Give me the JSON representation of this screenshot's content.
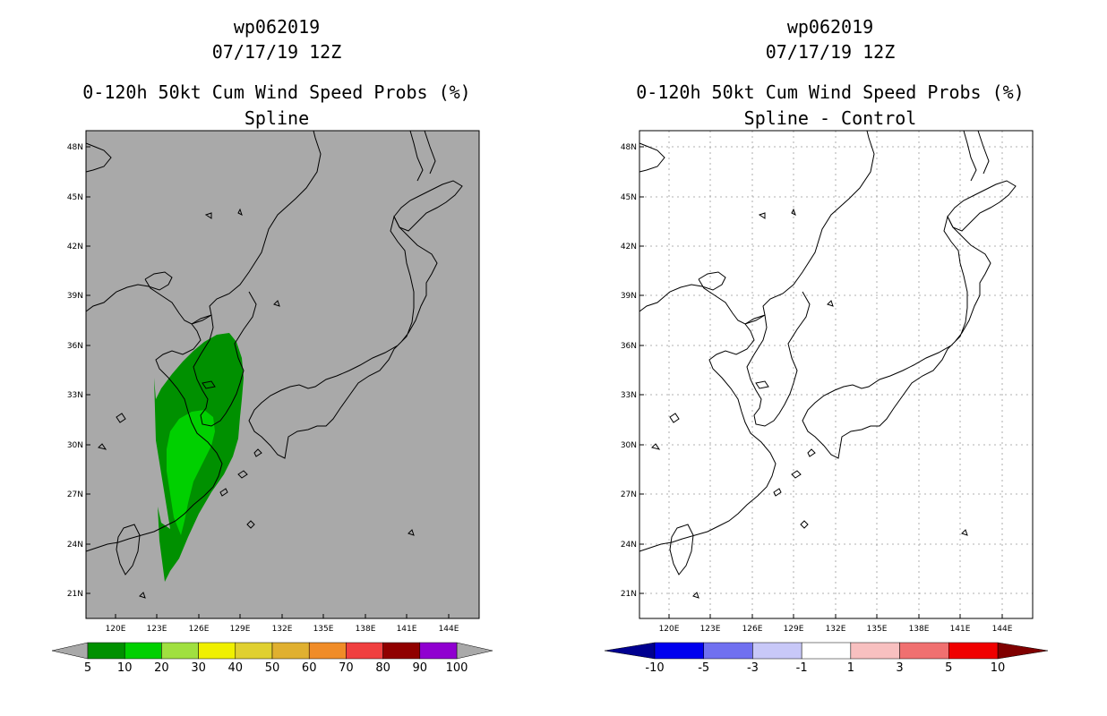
{
  "panels": [
    {
      "storm_id": "wp062019",
      "datetime": "07/17/19 12Z",
      "product": "0-120h 50kt Cum Wind Speed Probs (%)",
      "subtitle": "Spline",
      "map_background": "#a9a9a9",
      "gridlines": false
    },
    {
      "storm_id": "wp062019",
      "datetime": "07/17/19 12Z",
      "product": "0-120h 50kt Cum Wind Speed Probs (%)",
      "subtitle": "Spline - Control",
      "map_background": "#ffffff",
      "gridlines": true
    }
  ],
  "axes": {
    "lat_labels": [
      "48N",
      "45N",
      "42N",
      "39N",
      "36N",
      "33N",
      "30N",
      "27N",
      "24N",
      "21N"
    ],
    "lon_labels": [
      "120E",
      "123E",
      "126E",
      "129E",
      "132E",
      "135E",
      "138E",
      "141E",
      "144E"
    ]
  },
  "colorbars": [
    {
      "labels": [
        "5",
        "10",
        "20",
        "30",
        "40",
        "50",
        "60",
        "70",
        "80",
        "90",
        "100"
      ],
      "colors": [
        "#009000",
        "#00d000",
        "#a0e040",
        "#f0f000",
        "#e0d030",
        "#e0b030",
        "#f08c28",
        "#f04040",
        "#900000",
        "#9000d0"
      ],
      "end_left": "#a9a9a9",
      "end_right": "#a9a9a9"
    },
    {
      "labels": [
        "-10",
        "-5",
        "-3",
        "-1",
        "1",
        "3",
        "5",
        "10"
      ],
      "colors": [
        "#0000ee",
        "#7070f0",
        "#c8c8f8",
        "#ffffff",
        "#f8c0c0",
        "#f07070",
        "#f00000"
      ],
      "end_left": "#000090",
      "end_right": "#800000"
    }
  ],
  "probability_contours": [
    {
      "level": "5",
      "color": "#009000"
    },
    {
      "level": "10",
      "color": "#00d000"
    }
  ]
}
